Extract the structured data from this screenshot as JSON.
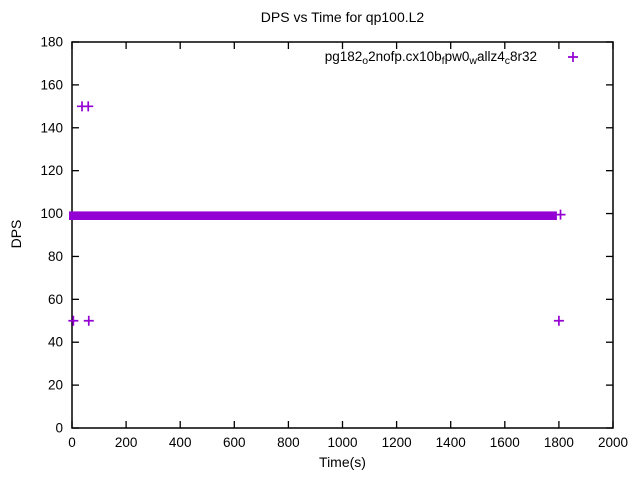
{
  "chart": {
    "title": "DPS vs Time for qp100.L2",
    "xlabel": "Time(s)",
    "ylabel": "DPS",
    "legend": {
      "label_plain": "pg182_o2nofp.cx10b_fpw0_wallz4_c8r32",
      "segments": [
        {
          "text": "pg182",
          "sub": false
        },
        {
          "text": "o",
          "sub": true
        },
        {
          "text": "2nofp.cx10b",
          "sub": false
        },
        {
          "text": "f",
          "sub": true
        },
        {
          "text": "pw0",
          "sub": false
        },
        {
          "text": "w",
          "sub": true
        },
        {
          "text": "allz4",
          "sub": false
        },
        {
          "text": "c",
          "sub": true
        },
        {
          "text": "8r32",
          "sub": false
        }
      ],
      "marker": "plus"
    },
    "colors": {
      "series": "#9400D3",
      "axis": "#000000",
      "text": "#000000",
      "background": "#ffffff"
    }
  },
  "chart_data": {
    "type": "scatter",
    "title": "DPS vs Time for qp100.L2",
    "xlabel": "Time(s)",
    "ylabel": "DPS",
    "xlim": [
      0,
      2000
    ],
    "ylim": [
      0,
      180
    ],
    "xticks": [
      0,
      200,
      400,
      600,
      800,
      1000,
      1200,
      1400,
      1600,
      1800,
      2000
    ],
    "yticks": [
      0,
      20,
      40,
      60,
      80,
      100,
      120,
      140,
      160,
      180
    ],
    "grid": false,
    "tick_style": "inward-mirrored",
    "legend_position": "top-right-inside",
    "series": [
      {
        "name": "pg182_o2nofp.cx10b_fpw0_wallz4_c8r32",
        "marker": "plus",
        "color": "#9400D3",
        "dense_band": {
          "x_start": 0,
          "x_end": 1800,
          "y_center": 99.3,
          "y_min": 97,
          "y_max": 101,
          "description": "continuous run of overlapping + markers at DPS ~99-100 for the whole interval 0-1800 s"
        },
        "outlier_points": [
          {
            "x": 5,
            "y": 50
          },
          {
            "x": 62,
            "y": 50
          },
          {
            "x": 37,
            "y": 150
          },
          {
            "x": 60,
            "y": 150
          },
          {
            "x": 1800,
            "y": 50
          },
          {
            "x": 1806,
            "y": 99.5
          }
        ]
      }
    ]
  }
}
